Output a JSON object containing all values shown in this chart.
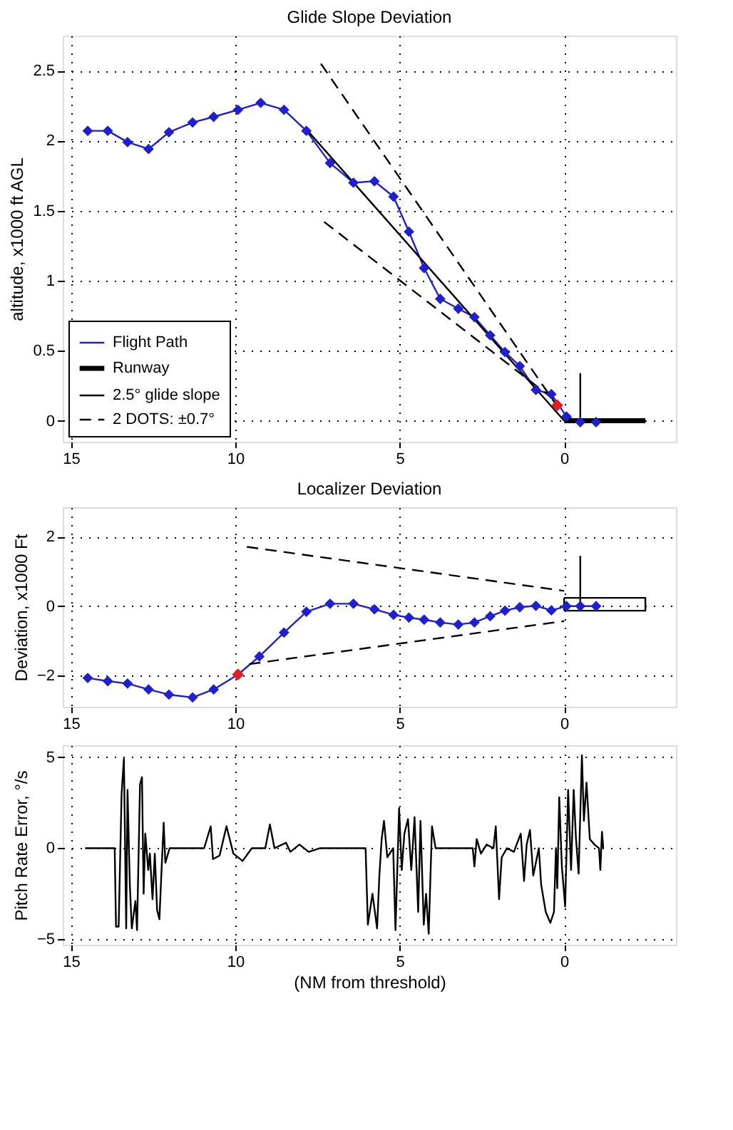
{
  "chart_data": [
    {
      "type": "line",
      "title": "Glide Slope Deviation",
      "ylabel": "altitude, x1000 ft AGL",
      "xlim": [
        15.25,
        -3.4
      ],
      "xticks": [
        15,
        10,
        5,
        0
      ],
      "ylim": [
        -0.15,
        2.75
      ],
      "yticks": [
        0,
        0.5,
        1,
        1.5,
        2,
        2.5
      ],
      "grid": true,
      "legend": "bottom left",
      "series": [
        {
          "name": "Flight Path",
          "color": "#1f1fd0",
          "marker": "diamond",
          "x": [
            14.49,
            13.88,
            13.28,
            12.64,
            12.02,
            11.3,
            10.66,
            9.92,
            9.23,
            8.52,
            7.84,
            7.12,
            6.41,
            5.77,
            5.19,
            4.72,
            4.26,
            3.77,
            3.22,
            2.73,
            2.25,
            1.8,
            1.35,
            0.86,
            0.39,
            -0.07,
            -0.49,
            -0.97
          ],
          "values": [
            2.07,
            2.07,
            1.99,
            1.94,
            2.06,
            2.13,
            2.17,
            2.22,
            2.27,
            2.22,
            2.07,
            1.84,
            1.7,
            1.71,
            1.6,
            1.35,
            1.09,
            0.87,
            0.8,
            0.74,
            0.61,
            0.49,
            0.39,
            0.22,
            0.19,
            0.03,
            -0.01,
            -0.01
          ]
        },
        {
          "name": "Runway",
          "color": "#000000",
          "marker": "none",
          "x": [
            0,
            -2.47
          ],
          "values": [
            0,
            0
          ]
        },
        {
          "name": "2.5° glide slope",
          "color": "#000000",
          "marker": "none",
          "x": [
            7.8,
            0
          ],
          "values": [
            2.07,
            0
          ]
        },
        {
          "name": "2 DOTS: ±0.7°",
          "color": "#000000",
          "marker": "none",
          "line_style": "dashed",
          "x": [
            7.4,
            0.2
          ],
          "values": [
            2.55,
            0.1
          ]
        },
        {
          "color": "#000000",
          "marker": "none",
          "line_style": "dashed",
          "x": [
            7.3,
            0.3
          ],
          "values": [
            1.42,
            0.15
          ]
        },
        {
          "color": "#000000",
          "marker": "none",
          "x": [
            -0.49,
            -0.49
          ],
          "values": [
            0.34,
            0
          ]
        },
        {
          "type": "scatter",
          "color": "#e02020",
          "marker": "diamond",
          "x": [
            0.21
          ],
          "values": [
            0.11
          ]
        }
      ]
    },
    {
      "type": "line",
      "title": "Localizer Deviation",
      "ylabel": "Deviation, x1000 Ft",
      "xlim": [
        15.25,
        -3.4
      ],
      "xticks": [
        15,
        10,
        5,
        0
      ],
      "ylim": [
        -2.9,
        2.85
      ],
      "yticks": [
        -2,
        0,
        2
      ],
      "grid": true,
      "series": [
        {
          "color": "#1f1fd0",
          "marker": "diamond",
          "x": [
            14.49,
            13.88,
            13.28,
            12.64,
            12.02,
            11.3,
            10.66,
            9.92,
            9.27,
            8.52,
            7.84,
            7.12,
            6.41,
            5.77,
            5.19,
            4.72,
            4.26,
            3.77,
            3.22,
            2.73,
            2.25,
            1.8,
            1.35,
            0.86,
            0.39,
            -0.07,
            -0.49,
            -0.97
          ],
          "values": [
            -2.07,
            -2.16,
            -2.23,
            -2.4,
            -2.55,
            -2.63,
            -2.4,
            -1.97,
            -1.45,
            -0.76,
            -0.16,
            0.07,
            0.07,
            -0.09,
            -0.25,
            -0.33,
            -0.39,
            -0.47,
            -0.53,
            -0.47,
            -0.29,
            -0.13,
            -0.03,
            0.01,
            -0.12,
            0,
            0,
            0
          ]
        },
        {
          "color": "#000000",
          "marker": "none",
          "line_style": "dashed",
          "x": [
            9.65,
            0
          ],
          "values": [
            1.71,
            0.44
          ]
        },
        {
          "color": "#000000",
          "marker": "none",
          "line_style": "dashed",
          "x": [
            9.58,
            0
          ],
          "values": [
            -1.67,
            -0.43
          ]
        },
        {
          "color": "#000000",
          "marker": "none",
          "x": [
            0,
            -2.47,
            -2.47,
            0
          ],
          "values": [
            0.24,
            0.24,
            -0.13,
            -0.13
          ]
        },
        {
          "color": "#000000",
          "marker": "none",
          "x": [
            0,
            0
          ],
          "values": [
            -0.13,
            0.24
          ]
        },
        {
          "color": "#000000",
          "marker": "none",
          "x": [
            -0.49,
            -0.49
          ],
          "values": [
            1.45,
            0
          ]
        },
        {
          "type": "scatter",
          "color": "#e02020",
          "marker": "diamond",
          "x": [
            9.92
          ],
          "values": [
            -1.97
          ]
        }
      ]
    },
    {
      "type": "line",
      "ylabel": "Pitch Rate Error, °/s",
      "xlabel": "(NM from threshold)",
      "xlim": [
        15.25,
        -3.4
      ],
      "xticks": [
        15,
        10,
        5,
        0
      ],
      "ylim": [
        -5.3,
        5.65
      ],
      "yticks": [
        -5,
        0,
        5
      ],
      "grid": true,
      "series": [
        {
          "color": "#000000",
          "marker": "none",
          "x": [
            14.57,
            13.67,
            13.63,
            13.55,
            13.46,
            13.39,
            13.32,
            13.28,
            13.21,
            13.15,
            13.04,
            12.99,
            12.9,
            12.84,
            12.79,
            12.74,
            12.65,
            12.6,
            12.52,
            12.45,
            12.38,
            12.31,
            12.24,
            12.18,
            12.13,
            12.0,
            10.95,
            10.75,
            10.68,
            10.48,
            10.27,
            10.06,
            9.78,
            9.5,
            9.09,
            8.95,
            8.81,
            8.46,
            8.33,
            8.05,
            7.77,
            7.42,
            6.04,
            5.97,
            5.83,
            5.69,
            5.62,
            5.55,
            5.48,
            5.38,
            5.2,
            5.13,
            5.02,
            4.94,
            4.86,
            4.75,
            4.65,
            4.55,
            4.44,
            4.37,
            4.27,
            4.2,
            4.12,
            4.02,
            3.91,
            2.78,
            2.73,
            2.66,
            2.53,
            2.36,
            2.15,
            2.08,
            1.98,
            1.9,
            1.74,
            1.53,
            1.32,
            1.22,
            1.14,
            1.04,
            0.94,
            0.77,
            0.7,
            0.56,
            0.42,
            0.31,
            0.25,
            0.21,
            0.15,
            0.07,
            -0.03,
            -0.12,
            -0.21,
            -0.29,
            -0.36,
            -0.44,
            -0.54,
            -0.6,
            -0.68,
            -0.78,
            -0.92,
            -1.06,
            -1.1,
            -1.15,
            -1.19
          ],
          "values": [
            0,
            0,
            -4.3,
            -4.3,
            3.0,
            4.9,
            -4.4,
            3.2,
            -2,
            -4.4,
            -2.9,
            -4.5,
            3.5,
            3.9,
            -2.5,
            0.8,
            -1.2,
            -0.3,
            -2.8,
            -0.3,
            -3.4,
            -3.9,
            -1,
            1.4,
            -0.8,
            0,
            0,
            1.2,
            -0.6,
            -0.4,
            1.2,
            -0.3,
            -0.7,
            0,
            0,
            1.3,
            0,
            0.3,
            -0.2,
            0.2,
            -0.2,
            0,
            0,
            -4.2,
            -2.5,
            -4.4,
            -1.5,
            0.5,
            1.5,
            -0.5,
            0,
            -4.5,
            2.2,
            -1.2,
            0.8,
            1.6,
            -1.2,
            1.7,
            -3.5,
            1.5,
            -4.2,
            -2.5,
            -4.7,
            1.2,
            0,
            0,
            -1,
            0.5,
            -0.3,
            0.2,
            0,
            1.2,
            -2.8,
            -0.5,
            0,
            -0.2,
            0.8,
            -1.8,
            0.2,
            1.0,
            -1.5,
            0,
            -2,
            -3.5,
            -4.1,
            -3.5,
            0,
            -2.2,
            2.8,
            -1,
            -3.2,
            3.2,
            -1.2,
            3.2,
            0.5,
            -1.4,
            5.1,
            1.5,
            3.6,
            0.5,
            0.2,
            0,
            -1.2,
            0.9,
            0
          ]
        }
      ]
    }
  ]
}
